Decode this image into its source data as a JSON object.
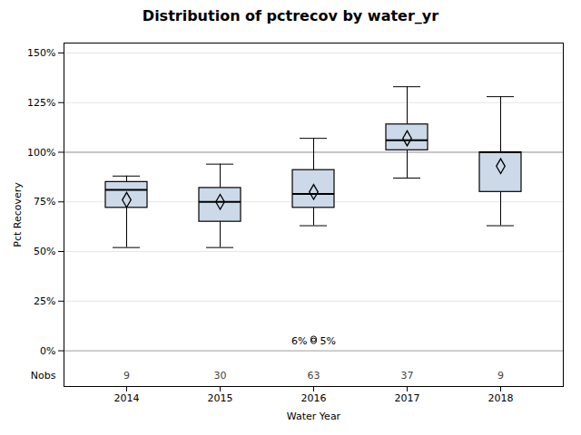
{
  "chart_data": {
    "type": "box",
    "title": "Distribution of pctrecov by water_yr",
    "xlabel": "Water Year",
    "ylabel": "Pct Recovery",
    "categories": [
      "2014",
      "2015",
      "2016",
      "2017",
      "2018"
    ],
    "whislo": [
      52,
      52,
      63,
      87,
      63
    ],
    "q1": [
      72,
      65,
      72,
      101,
      80
    ],
    "median": [
      81,
      75,
      79,
      106,
      100
    ],
    "q3": [
      85,
      82,
      91,
      114,
      100
    ],
    "whishi": [
      88,
      94,
      107,
      133,
      128
    ],
    "mean": [
      76,
      75,
      80,
      107,
      93
    ],
    "outliers": [
      [],
      [],
      [
        5,
        6
      ],
      [],
      []
    ],
    "nobs_label": "Nobs",
    "nobs": [
      9,
      30,
      63,
      37,
      9
    ],
    "annotations": [
      {
        "x": "2016",
        "y": 5,
        "texts": [
          "6%",
          "5%"
        ]
      }
    ],
    "reference_lines": [
      {
        "y": 100,
        "color": "#999999"
      },
      {
        "y": 0,
        "color": "#aaaaaa"
      }
    ],
    "color": "#ccd9e8",
    "ylim": [
      -18,
      155
    ],
    "yticks": [
      {
        "value": 0,
        "label": "0%"
      },
      {
        "value": 25,
        "label": "25%"
      },
      {
        "value": 50,
        "label": "50%"
      },
      {
        "value": 75,
        "label": "75%"
      },
      {
        "value": 100,
        "label": "100%"
      },
      {
        "value": 125,
        "label": "125%"
      },
      {
        "value": 150,
        "label": "150%"
      }
    ],
    "grid": true
  }
}
